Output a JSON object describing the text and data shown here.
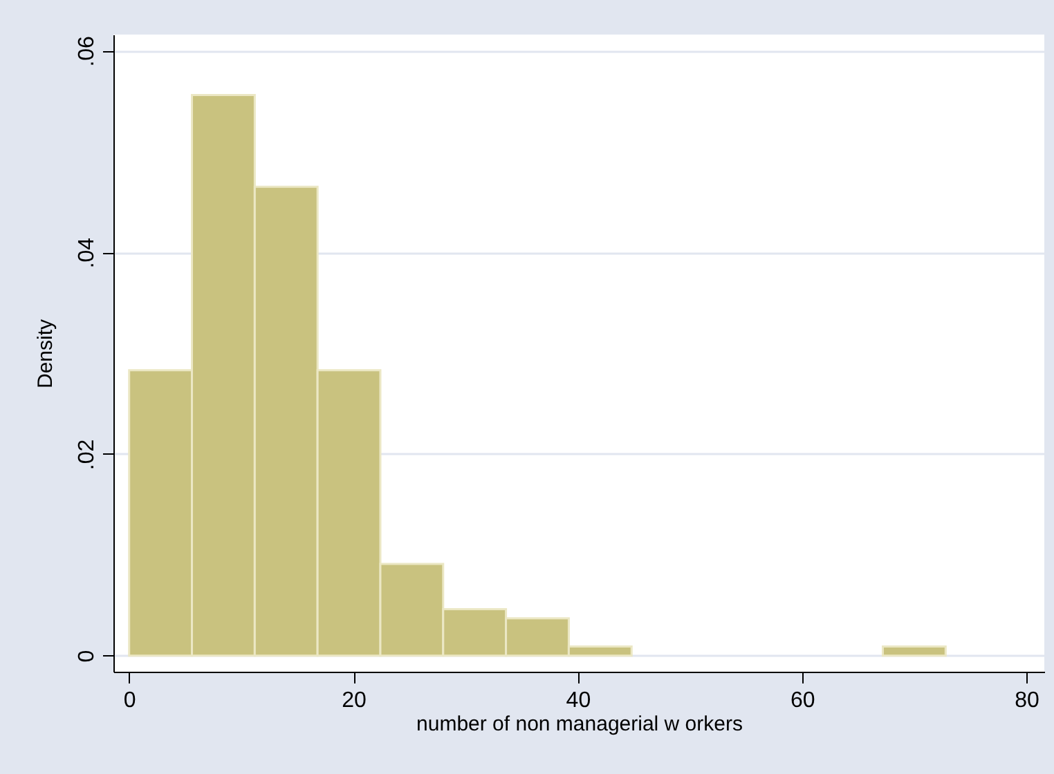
{
  "chart_data": {
    "type": "histogram",
    "xlabel": "number of non managerial w orkers",
    "ylabel": "Density",
    "bins": [
      0,
      5.6,
      11.2,
      16.8,
      22.4,
      28,
      33.6,
      39.2,
      44.8,
      50.4,
      56,
      61.6,
      67.2,
      72.8
    ],
    "values": [
      0.0283,
      0.0556,
      0.0465,
      0.0283,
      0.0091,
      0.0046,
      0.0037,
      0.0009,
      0,
      0,
      0,
      0,
      0.0009
    ],
    "color": "#c9c27f",
    "xlim": [
      -1.4,
      81.6
    ],
    "xticks": [
      0,
      20,
      40,
      60,
      80
    ],
    "ylim": [
      -0.0016,
      0.0616
    ],
    "yticks": [
      {
        "value": 0,
        "label": "0"
      },
      {
        "value": 0.02,
        "label": ".02"
      },
      {
        "value": 0.04,
        "label": ".04"
      },
      {
        "value": 0.06,
        "label": ".06"
      }
    ],
    "grid": "y"
  }
}
